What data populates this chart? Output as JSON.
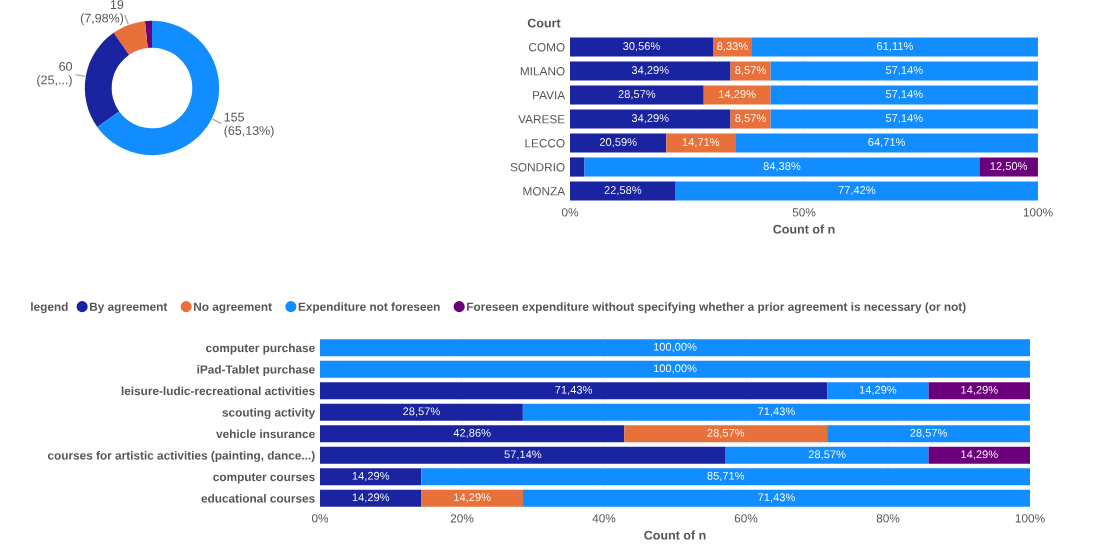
{
  "chart_data": [
    {
      "type": "donut",
      "categories": [
        null,
        null,
        null,
        null
      ],
      "values": [
        4,
        19,
        60,
        155
      ],
      "colors": [
        "#6b007b",
        "#e8703a",
        "#1a23a0",
        "#118dff"
      ],
      "value_labels": [
        null,
        "19\n(7,98%)",
        "60\n(25,...)",
        "155\n(65,13%)"
      ]
    },
    {
      "type": "bar",
      "orientation": "horizontal",
      "stacked": true,
      "ylabel": "Court",
      "xlabel": "Count of n",
      "categories": [
        "COMO",
        "MILANO",
        "PAVIA",
        "VARESE",
        "LECCO",
        "SONDRIO",
        "MONZA"
      ],
      "xlim": [
        0,
        100
      ],
      "xticks": [
        {
          "value": 0,
          "label": "0%"
        },
        {
          "value": 50,
          "label": "50%"
        },
        {
          "value": 100,
          "label": "100%"
        }
      ],
      "grid": "x",
      "legend": false,
      "series": [
        {
          "color": "#1a23a0",
          "values": [
            30.56,
            34.29,
            28.57,
            34.29,
            20.59,
            3.1,
            22.58
          ],
          "value_labels": [
            "30,56%",
            "34,29%",
            "28,57%",
            "34,29%",
            "20,59%",
            null,
            "22,58%"
          ]
        },
        {
          "color": "#e8703a",
          "values": [
            8.33,
            8.57,
            14.29,
            8.57,
            14.71,
            null,
            null
          ],
          "value_labels": [
            "8,33%",
            "8,57%",
            "14,29%",
            "8,57%",
            "14,71%",
            null,
            null
          ]
        },
        {
          "color": "#118dff",
          "values": [
            61.11,
            57.14,
            57.14,
            57.14,
            64.71,
            84.38,
            77.42
          ],
          "value_labels": [
            "61,11%",
            "57,14%",
            "57,14%",
            "57,14%",
            "64,71%",
            "84,38%",
            "77,42%"
          ]
        },
        {
          "color": "#6b007b",
          "values": [
            null,
            null,
            null,
            null,
            null,
            12.5,
            null
          ],
          "value_labels": [
            null,
            null,
            null,
            null,
            null,
            "12,50%",
            null
          ]
        }
      ]
    },
    {
      "type": "bar",
      "orientation": "horizontal",
      "stacked": true,
      "xlabel": "Count of n",
      "legend_title": "legend",
      "legend": "top left",
      "categories": [
        "computer purchase",
        "iPad-Tablet purchase",
        "leisure-ludic-recreational activities",
        "scouting activity",
        "vehicle insurance",
        "courses for artistic activities (painting, dance...)",
        "computer courses",
        "educational courses"
      ],
      "xlim": [
        0,
        100
      ],
      "xticks": [
        {
          "value": 0,
          "label": "0%"
        },
        {
          "value": 20,
          "label": "20%"
        },
        {
          "value": 40,
          "label": "40%"
        },
        {
          "value": 60,
          "label": "60%"
        },
        {
          "value": 80,
          "label": "80%"
        },
        {
          "value": 100,
          "label": "100%"
        }
      ],
      "grid": "x",
      "series": [
        {
          "name": "By agreement",
          "color": "#1a23a0",
          "values": [
            null,
            null,
            71.43,
            28.57,
            42.86,
            57.14,
            14.29,
            14.29
          ],
          "value_labels": [
            null,
            null,
            "71,43%",
            "28,57%",
            "42,86%",
            "57,14%",
            "14,29%",
            "14,29%"
          ]
        },
        {
          "name": "No agreement",
          "color": "#e8703a",
          "values": [
            null,
            null,
            null,
            null,
            28.57,
            null,
            null,
            14.29
          ],
          "value_labels": [
            null,
            null,
            null,
            null,
            "28,57%",
            null,
            null,
            "14,29%"
          ]
        },
        {
          "name": "Expenditure not foreseen",
          "color": "#118dff",
          "values": [
            100,
            100,
            14.29,
            71.43,
            28.57,
            28.57,
            85.71,
            71.43
          ],
          "value_labels": [
            "100,00%",
            "100,00%",
            "14,29%",
            "71,43%",
            "28,57%",
            "28,57%",
            "85,71%",
            "71,43%"
          ]
        },
        {
          "name": "Foreseen expenditure without specifying whether a prior agreement is necessary (or not)",
          "color": "#6b007b",
          "values": [
            null,
            null,
            14.29,
            null,
            null,
            14.29,
            null,
            null
          ],
          "value_labels": [
            null,
            null,
            "14,29%",
            null,
            null,
            "14,29%",
            null,
            null
          ]
        }
      ]
    }
  ]
}
